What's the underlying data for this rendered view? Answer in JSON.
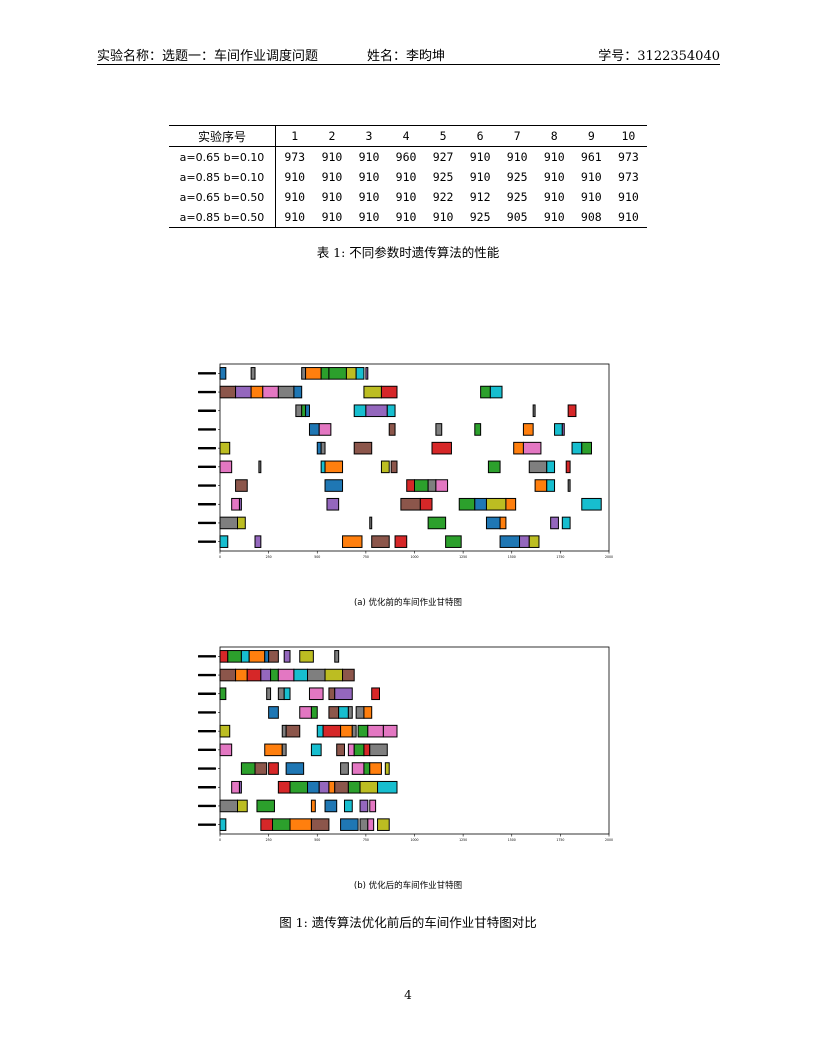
{
  "header": {
    "left": "实验名称：选题一：车间作业调度问题",
    "middle": "姓名：李昀坤",
    "right": "学号：3122354040"
  },
  "table": {
    "headers": [
      "实验序号",
      "1",
      "2",
      "3",
      "4",
      "5",
      "6",
      "7",
      "8",
      "9",
      "10"
    ],
    "rows": [
      [
        "a=0.65 b=0.10",
        "973",
        "910",
        "910",
        "960",
        "927",
        "910",
        "910",
        "910",
        "961",
        "973"
      ],
      [
        "a=0.85 b=0.10",
        "910",
        "910",
        "910",
        "910",
        "925",
        "910",
        "925",
        "910",
        "910",
        "973"
      ],
      [
        "a=0.65 b=0.50",
        "910",
        "910",
        "910",
        "910",
        "922",
        "912",
        "925",
        "910",
        "910",
        "910"
      ],
      [
        "a=0.85 b=0.50",
        "910",
        "910",
        "910",
        "910",
        "910",
        "925",
        "905",
        "910",
        "908",
        "910"
      ]
    ],
    "caption": "表 1: 不同参数时遗传算法的性能"
  },
  "figure_caption": "图 1: 遗传算法优化前后的车间作业甘特图对比",
  "page_number": "4",
  "palette": {
    "blue": "#1f77b4",
    "orange": "#ff7f0e",
    "green": "#2ca02c",
    "red": "#d62728",
    "purple": "#9467bd",
    "brown": "#8c564b",
    "pink": "#e377c2",
    "gray": "#7f7f7f",
    "olive": "#bcbd22",
    "cyan": "#17becf"
  },
  "chart_data": [
    {
      "type": "gantt",
      "subcaption": "(a) 优化前的车间作业甘特图",
      "xlim": [
        0,
        2000
      ],
      "x_ticks": [
        0,
        250,
        500,
        750,
        1000,
        1250,
        1500,
        1750,
        2000
      ],
      "rows": [
        {
          "tasks": [
            [
              0,
              40,
              "cyan"
            ],
            [
              180,
              210,
              "purple"
            ],
            [
              630,
              730,
              "orange"
            ],
            [
              780,
              870,
              "brown"
            ],
            [
              900,
              960,
              "red"
            ],
            [
              1160,
              1240,
              "green"
            ],
            [
              1440,
              1540,
              "blue"
            ],
            [
              1540,
              1590,
              "purple"
            ],
            [
              1590,
              1640,
              "olive"
            ]
          ]
        },
        {
          "tasks": [
            [
              0,
              90,
              "gray"
            ],
            [
              90,
              130,
              "olive"
            ],
            [
              770,
              780,
              "gray"
            ],
            [
              1070,
              1160,
              "green"
            ],
            [
              1370,
              1440,
              "blue"
            ],
            [
              1440,
              1470,
              "orange"
            ],
            [
              1700,
              1740,
              "purple"
            ],
            [
              1760,
              1800,
              "cyan"
            ]
          ]
        },
        {
          "tasks": [
            [
              60,
              100,
              "pink"
            ],
            [
              100,
              110,
              "purple"
            ],
            [
              550,
              610,
              "purple"
            ],
            [
              930,
              1030,
              "brown"
            ],
            [
              1030,
              1090,
              "red"
            ],
            [
              1230,
              1310,
              "green"
            ],
            [
              1310,
              1370,
              "blue"
            ],
            [
              1370,
              1470,
              "olive"
            ],
            [
              1470,
              1520,
              "orange"
            ],
            [
              1860,
              1960,
              "cyan"
            ]
          ]
        },
        {
          "tasks": [
            [
              80,
              140,
              "brown"
            ],
            [
              540,
              630,
              "blue"
            ],
            [
              960,
              1000,
              "red"
            ],
            [
              1000,
              1070,
              "green"
            ],
            [
              1070,
              1110,
              "gray"
            ],
            [
              1110,
              1170,
              "pink"
            ],
            [
              1620,
              1680,
              "orange"
            ],
            [
              1680,
              1720,
              "cyan"
            ],
            [
              1790,
              1800,
              "gray"
            ]
          ]
        },
        {
          "tasks": [
            [
              0,
              60,
              "pink"
            ],
            [
              200,
              210,
              "gray"
            ],
            [
              520,
              540,
              "cyan"
            ],
            [
              540,
              630,
              "orange"
            ],
            [
              830,
              870,
              "olive"
            ],
            [
              880,
              910,
              "brown"
            ],
            [
              1380,
              1440,
              "green"
            ],
            [
              1590,
              1680,
              "gray"
            ],
            [
              1680,
              1720,
              "cyan"
            ],
            [
              1780,
              1800,
              "red"
            ]
          ]
        },
        {
          "tasks": [
            [
              0,
              50,
              "olive"
            ],
            [
              500,
              520,
              "blue"
            ],
            [
              520,
              540,
              "gray"
            ],
            [
              690,
              780,
              "brown"
            ],
            [
              1090,
              1190,
              "red"
            ],
            [
              1510,
              1560,
              "orange"
            ],
            [
              1560,
              1650,
              "pink"
            ],
            [
              1810,
              1860,
              "cyan"
            ],
            [
              1860,
              1910,
              "green"
            ]
          ]
        },
        {
          "tasks": [
            [
              460,
              510,
              "blue"
            ],
            [
              510,
              570,
              "pink"
            ],
            [
              870,
              900,
              "brown"
            ],
            [
              1110,
              1140,
              "gray"
            ],
            [
              1310,
              1340,
              "green"
            ],
            [
              1560,
              1610,
              "orange"
            ],
            [
              1720,
              1760,
              "cyan"
            ],
            [
              1760,
              1770,
              "purple"
            ]
          ]
        },
        {
          "tasks": [
            [
              390,
              420,
              "gray"
            ],
            [
              420,
              440,
              "green"
            ],
            [
              440,
              460,
              "blue"
            ],
            [
              690,
              750,
              "cyan"
            ],
            [
              750,
              860,
              "purple"
            ],
            [
              860,
              900,
              "cyan"
            ],
            [
              1610,
              1620,
              "gray"
            ],
            [
              1790,
              1830,
              "red"
            ]
          ]
        },
        {
          "tasks": [
            [
              0,
              80,
              "brown"
            ],
            [
              80,
              160,
              "purple"
            ],
            [
              160,
              220,
              "orange"
            ],
            [
              220,
              300,
              "pink"
            ],
            [
              300,
              380,
              "gray"
            ],
            [
              380,
              420,
              "blue"
            ],
            [
              740,
              830,
              "olive"
            ],
            [
              830,
              910,
              "red"
            ],
            [
              1340,
              1390,
              "green"
            ],
            [
              1390,
              1450,
              "cyan"
            ]
          ]
        },
        {
          "tasks": [
            [
              0,
              30,
              "blue"
            ],
            [
              160,
              180,
              "gray"
            ],
            [
              420,
              440,
              "gray"
            ],
            [
              440,
              520,
              "orange"
            ],
            [
              520,
              560,
              "green"
            ],
            [
              560,
              650,
              "green"
            ],
            [
              650,
              700,
              "olive"
            ],
            [
              700,
              740,
              "cyan"
            ],
            [
              750,
              760,
              "purple"
            ]
          ]
        }
      ]
    },
    {
      "type": "gantt",
      "subcaption": "(b) 优化后的车间作业甘特图",
      "xlim": [
        0,
        2000
      ],
      "x_ticks": [
        0,
        250,
        500,
        750,
        1000,
        1250,
        1500,
        1750,
        2000
      ],
      "rows": [
        {
          "tasks": [
            [
              0,
              30,
              "cyan"
            ],
            [
              210,
              270,
              "red"
            ],
            [
              270,
              360,
              "green"
            ],
            [
              360,
              470,
              "orange"
            ],
            [
              470,
              560,
              "brown"
            ],
            [
              620,
              710,
              "blue"
            ],
            [
              720,
              760,
              "gray"
            ],
            [
              760,
              790,
              "pink"
            ],
            [
              810,
              870,
              "olive"
            ]
          ]
        },
        {
          "tasks": [
            [
              0,
              90,
              "gray"
            ],
            [
              90,
              140,
              "olive"
            ],
            [
              190,
              280,
              "green"
            ],
            [
              470,
              490,
              "orange"
            ],
            [
              540,
              600,
              "blue"
            ],
            [
              640,
              680,
              "cyan"
            ],
            [
              720,
              760,
              "purple"
            ],
            [
              770,
              800,
              "pink"
            ]
          ]
        },
        {
          "tasks": [
            [
              60,
              100,
              "pink"
            ],
            [
              100,
              110,
              "purple"
            ],
            [
              300,
              360,
              "red"
            ],
            [
              360,
              450,
              "green"
            ],
            [
              450,
              510,
              "blue"
            ],
            [
              510,
              560,
              "purple"
            ],
            [
              560,
              590,
              "orange"
            ],
            [
              590,
              660,
              "brown"
            ],
            [
              660,
              720,
              "green"
            ],
            [
              720,
              810,
              "olive"
            ],
            [
              810,
              910,
              "cyan"
            ]
          ]
        },
        {
          "tasks": [
            [
              110,
              180,
              "green"
            ],
            [
              180,
              240,
              "brown"
            ],
            [
              250,
              300,
              "red"
            ],
            [
              340,
              430,
              "blue"
            ],
            [
              620,
              660,
              "gray"
            ],
            [
              680,
              740,
              "pink"
            ],
            [
              740,
              770,
              "green"
            ],
            [
              770,
              830,
              "orange"
            ],
            [
              850,
              870,
              "olive"
            ]
          ]
        },
        {
          "tasks": [
            [
              0,
              60,
              "pink"
            ],
            [
              230,
              320,
              "orange"
            ],
            [
              320,
              340,
              "gray"
            ],
            [
              470,
              520,
              "cyan"
            ],
            [
              600,
              640,
              "brown"
            ],
            [
              660,
              690,
              "pink"
            ],
            [
              690,
              740,
              "green"
            ],
            [
              740,
              770,
              "red"
            ],
            [
              770,
              860,
              "gray"
            ]
          ]
        },
        {
          "tasks": [
            [
              0,
              50,
              "olive"
            ],
            [
              320,
              340,
              "gray"
            ],
            [
              340,
              410,
              "brown"
            ],
            [
              500,
              530,
              "cyan"
            ],
            [
              530,
              620,
              "red"
            ],
            [
              620,
              680,
              "orange"
            ],
            [
              680,
              700,
              "gray"
            ],
            [
              710,
              760,
              "green"
            ],
            [
              760,
              840,
              "pink"
            ],
            [
              840,
              910,
              "pink"
            ]
          ]
        },
        {
          "tasks": [
            [
              250,
              300,
              "blue"
            ],
            [
              410,
              470,
              "pink"
            ],
            [
              470,
              500,
              "green"
            ],
            [
              560,
              610,
              "brown"
            ],
            [
              610,
              660,
              "cyan"
            ],
            [
              660,
              680,
              "gray"
            ],
            [
              700,
              740,
              "gray"
            ],
            [
              740,
              780,
              "orange"
            ]
          ]
        },
        {
          "tasks": [
            [
              0,
              30,
              "green"
            ],
            [
              240,
              260,
              "gray"
            ],
            [
              300,
              330,
              "gray"
            ],
            [
              330,
              360,
              "cyan"
            ],
            [
              460,
              530,
              "pink"
            ],
            [
              560,
              590,
              "brown"
            ],
            [
              590,
              680,
              "purple"
            ],
            [
              780,
              820,
              "red"
            ]
          ]
        },
        {
          "tasks": [
            [
              0,
              80,
              "brown"
            ],
            [
              80,
              140,
              "orange"
            ],
            [
              140,
              210,
              "red"
            ],
            [
              210,
              260,
              "purple"
            ],
            [
              260,
              300,
              "green"
            ],
            [
              300,
              380,
              "pink"
            ],
            [
              380,
              450,
              "cyan"
            ],
            [
              450,
              540,
              "gray"
            ],
            [
              540,
              630,
              "olive"
            ],
            [
              630,
              690,
              "brown"
            ]
          ]
        },
        {
          "tasks": [
            [
              0,
              40,
              "red"
            ],
            [
              40,
              110,
              "green"
            ],
            [
              110,
              150,
              "cyan"
            ],
            [
              150,
              230,
              "orange"
            ],
            [
              230,
              250,
              "blue"
            ],
            [
              250,
              300,
              "brown"
            ],
            [
              330,
              360,
              "purple"
            ],
            [
              410,
              480,
              "olive"
            ],
            [
              590,
              610,
              "gray"
            ]
          ]
        }
      ]
    }
  ]
}
